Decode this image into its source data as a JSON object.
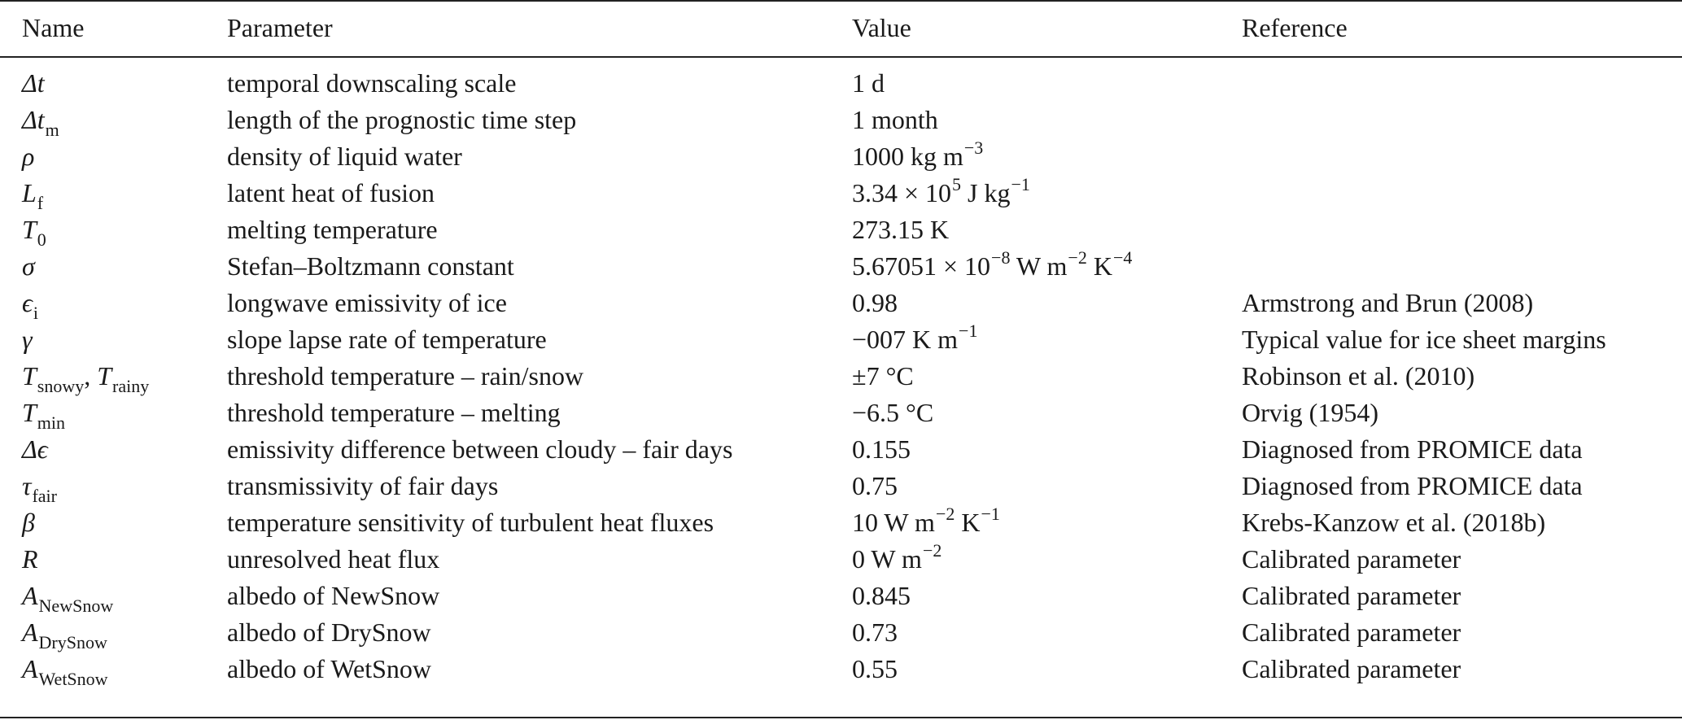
{
  "table": {
    "headers": {
      "name": "Name",
      "parameter": "Parameter",
      "value": "Value",
      "reference": "Reference"
    },
    "rows": [
      {
        "name_main": "Δt",
        "name_sub": "",
        "parameter": "temporal downscaling scale",
        "value_main": "1 d",
        "value_sup": "",
        "value_tail": "",
        "value_sup2": "",
        "reference": ""
      },
      {
        "name_main": "Δt",
        "name_sub": "m",
        "parameter": "length of the prognostic time step",
        "value_main": "1 month",
        "value_sup": "",
        "value_tail": "",
        "value_sup2": "",
        "reference": ""
      },
      {
        "name_main": "ρ",
        "name_sub": "",
        "parameter": "density of liquid water",
        "value_main": "1000 kg m",
        "value_sup": "−3",
        "value_tail": "",
        "value_sup2": "",
        "reference": ""
      },
      {
        "name_main": "L",
        "name_sub": "f",
        "parameter": "latent heat of fusion",
        "value_main": "3.34 × 10",
        "value_sup": "5",
        "value_tail": " J kg",
        "value_sup2": "−1",
        "reference": ""
      },
      {
        "name_main": "T",
        "name_sub": "0",
        "parameter": "melting temperature",
        "value_main": "273.15 K",
        "value_sup": "",
        "value_tail": "",
        "value_sup2": "",
        "reference": ""
      },
      {
        "name_main": "σ",
        "name_sub": "",
        "parameter": "Stefan–Boltzmann constant",
        "value_main": "5.67051 × 10",
        "value_sup": "−8",
        "value_tail": " W m",
        "value_sup2": "−2",
        "value_tail2": " K",
        "value_sup3": "−4",
        "reference": ""
      },
      {
        "name_main": "ϵ",
        "name_sub": "i",
        "parameter": "longwave emissivity of ice",
        "value_main": "0.98",
        "value_sup": "",
        "value_tail": "",
        "value_sup2": "",
        "reference": "Armstrong and Brun (2008)"
      },
      {
        "name_main": "γ",
        "name_sub": "",
        "parameter": "slope lapse rate of temperature",
        "value_main": "−007 K m",
        "value_sup": "−1",
        "value_tail": "",
        "value_sup2": "",
        "reference": "Typical value for ice sheet margins"
      },
      {
        "name_main": "T",
        "name_sub": "snowy",
        "name_sep": ", ",
        "name_main2": "T",
        "name_sub2": "rainy",
        "parameter": "threshold temperature – rain/snow",
        "value_main": "±7 °C",
        "value_sup": "",
        "value_tail": "",
        "value_sup2": "",
        "reference": "Robinson et al. (2010)"
      },
      {
        "name_main": "T",
        "name_sub": "min",
        "parameter": "threshold temperature – melting",
        "value_main": "−6.5 °C",
        "value_sup": "",
        "value_tail": "",
        "value_sup2": "",
        "reference": "Orvig (1954)"
      },
      {
        "name_main": "Δϵ",
        "name_sub": "",
        "parameter": "emissivity difference between cloudy – fair days",
        "value_main": "0.155",
        "value_sup": "",
        "value_tail": "",
        "value_sup2": "",
        "reference": "Diagnosed from PROMICE data"
      },
      {
        "name_main": "τ",
        "name_sub": "fair",
        "parameter": "transmissivity of fair days",
        "value_main": "0.75",
        "value_sup": "",
        "value_tail": "",
        "value_sup2": "",
        "reference": "Diagnosed from PROMICE data"
      },
      {
        "name_main": "β",
        "name_sub": "",
        "parameter": "temperature sensitivity of turbulent heat fluxes",
        "value_main": "10 W m",
        "value_sup": "−2",
        "value_tail": " K",
        "value_sup2": "−1",
        "reference": "Krebs-Kanzow et al. (2018b)"
      },
      {
        "name_main": "R",
        "name_sub": "",
        "parameter": "unresolved heat flux",
        "value_main": "0 W m",
        "value_sup": "−2",
        "value_tail": "",
        "value_sup2": "",
        "reference": "Calibrated parameter"
      },
      {
        "name_main": "A",
        "name_sub": "NewSnow",
        "parameter": "albedo of NewSnow",
        "value_main": "0.845",
        "value_sup": "",
        "value_tail": "",
        "value_sup2": "",
        "reference": "Calibrated parameter"
      },
      {
        "name_main": "A",
        "name_sub": "DrySnow",
        "parameter": "albedo of DrySnow",
        "value_main": "0.73",
        "value_sup": "",
        "value_tail": "",
        "value_sup2": "",
        "reference": "Calibrated parameter"
      },
      {
        "name_main": "A",
        "name_sub": "WetSnow",
        "parameter": "albedo of WetSnow",
        "value_main": "0.55",
        "value_sup": "",
        "value_tail": "",
        "value_sup2": "",
        "reference": "Calibrated parameter"
      }
    ]
  }
}
